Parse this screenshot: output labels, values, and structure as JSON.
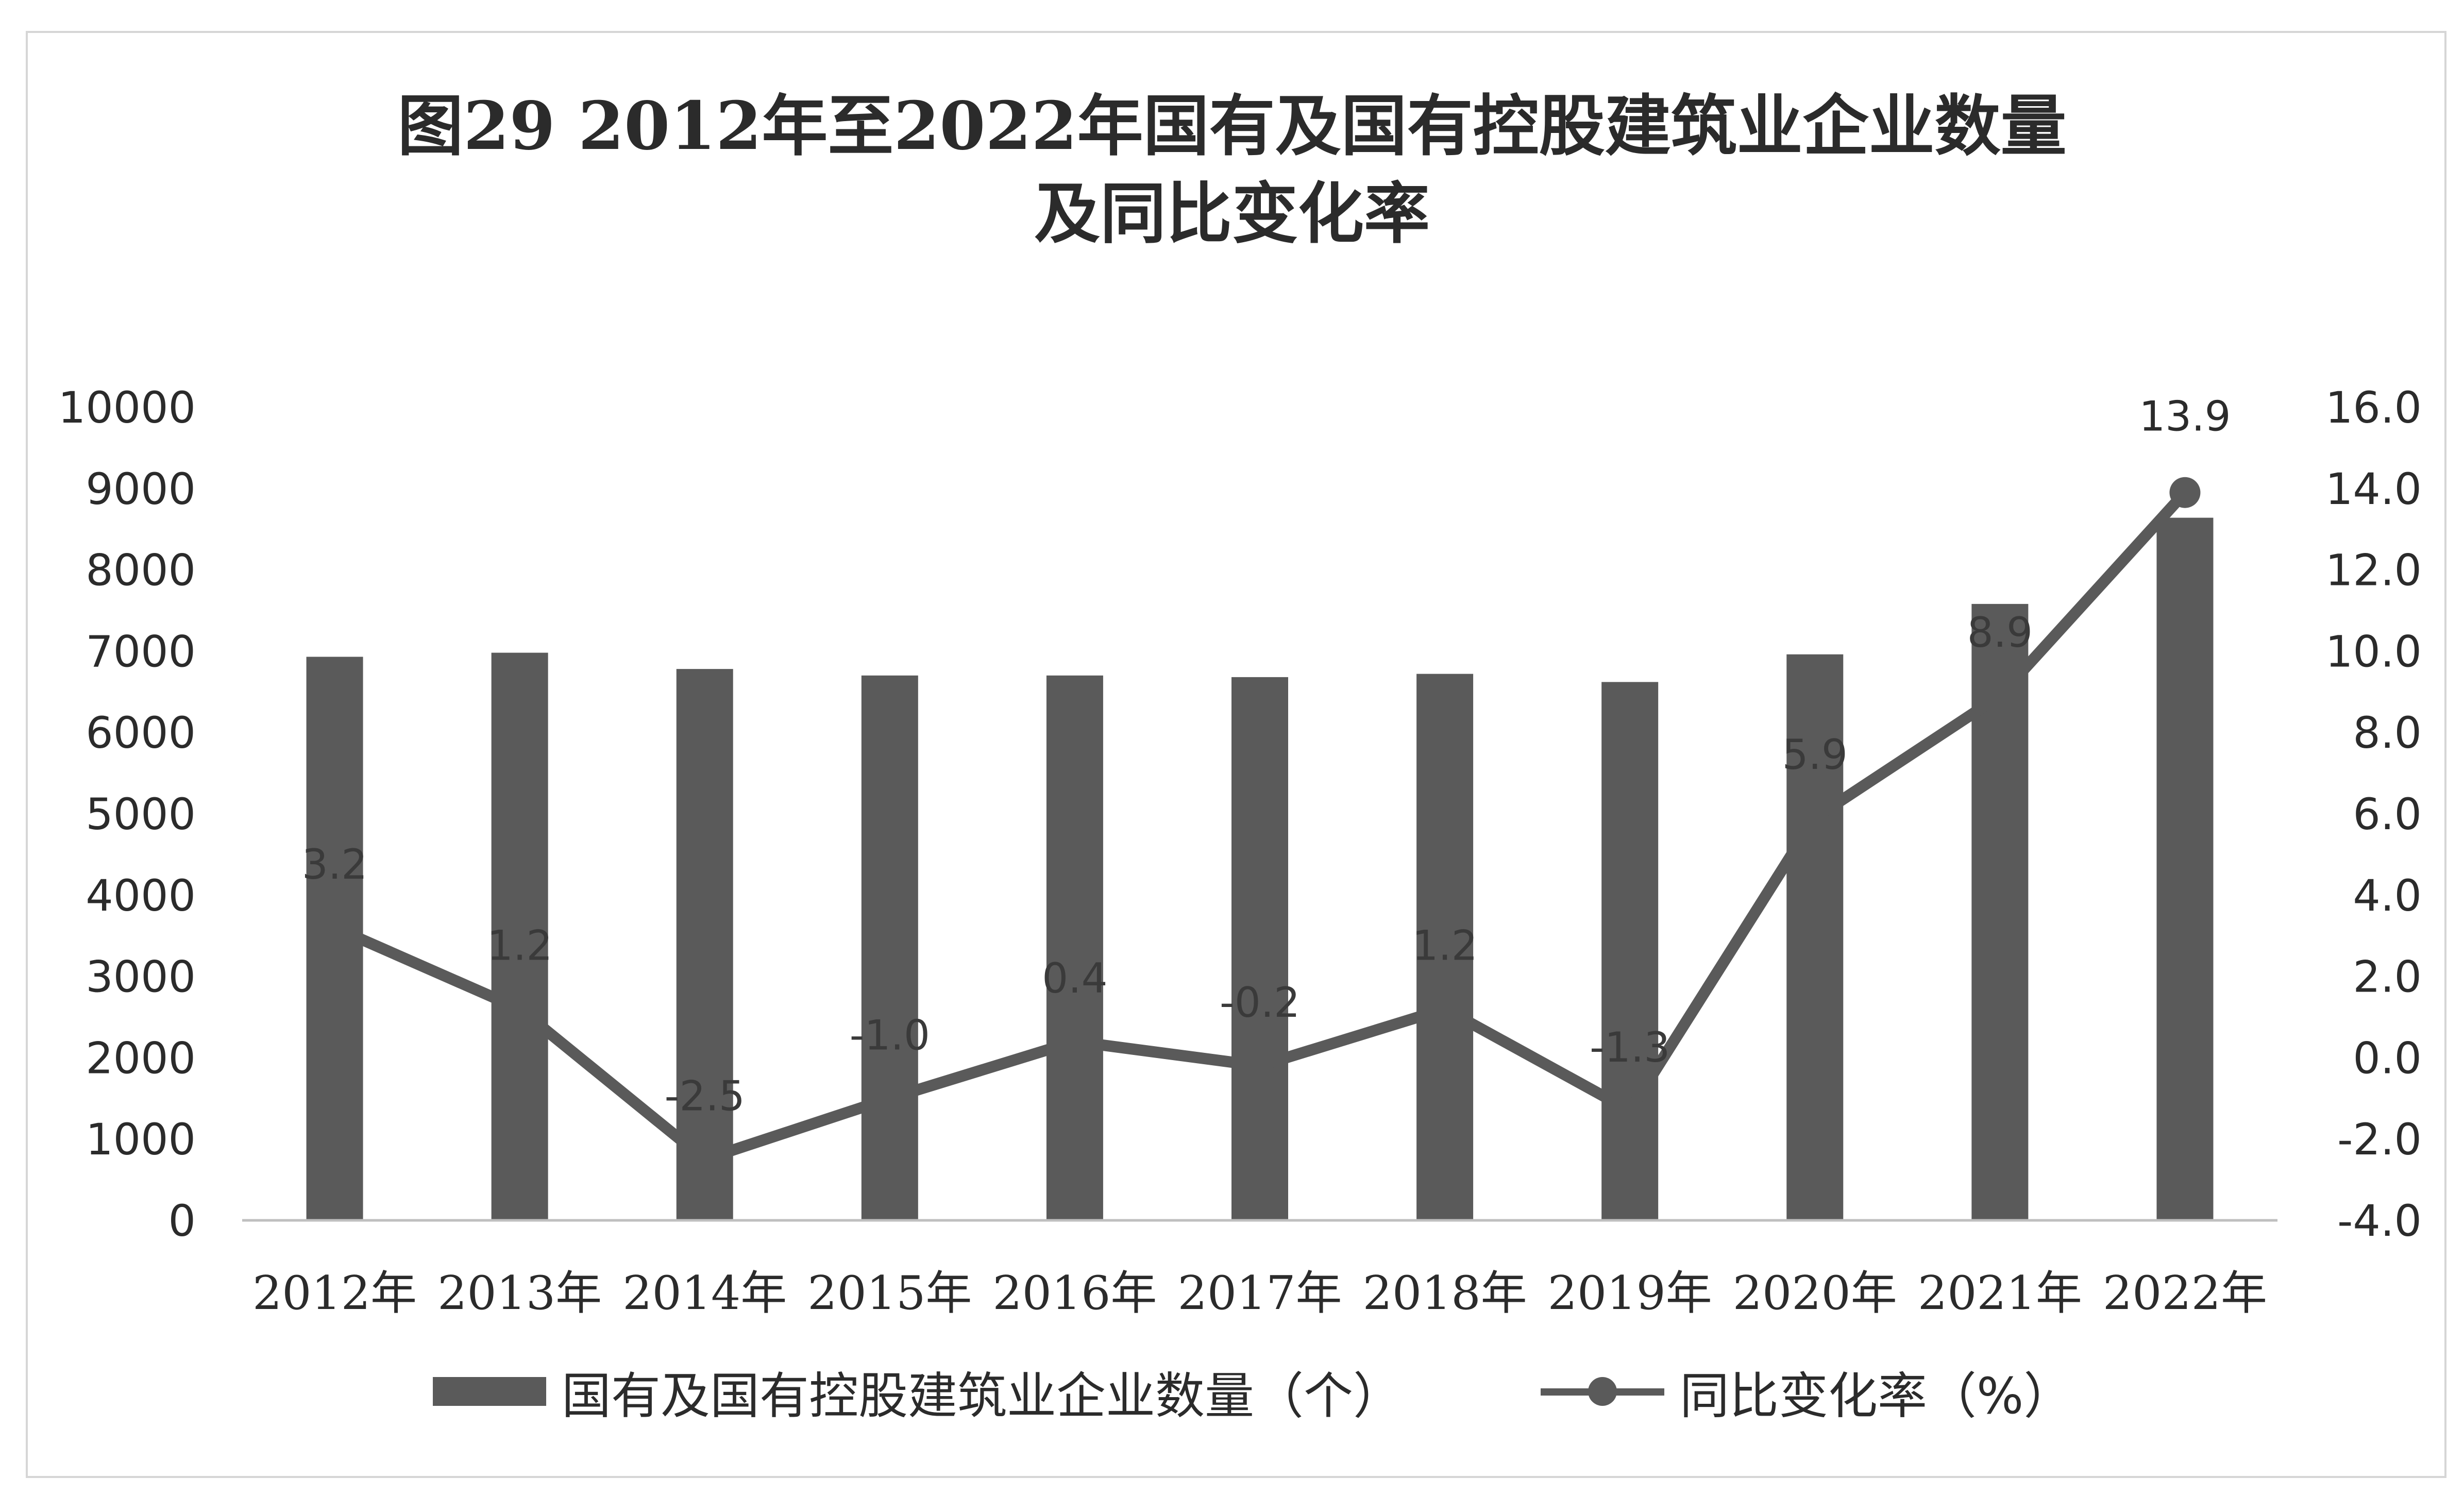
{
  "chart_data": {
    "type": "bar",
    "title_line1": "图29  2012年至2022年国有及国有控股建筑业企业数量",
    "title_line2": "及同比变化率",
    "categories": [
      "2012年",
      "2013年",
      "2014年",
      "2015年",
      "2016年",
      "2017年",
      "2018年",
      "2019年",
      "2020年",
      "2021年",
      "2022年"
    ],
    "series": [
      {
        "name": "国有及国有控股建筑业企业数量（个）",
        "axis": "left",
        "type": "bar",
        "color": "#5a5a5a",
        "values": [
          6930,
          6980,
          6780,
          6700,
          6700,
          6680,
          6720,
          6620,
          6960,
          7580,
          8640
        ]
      },
      {
        "name": "同比变化率（%）",
        "axis": "right",
        "type": "line",
        "color": "#5a5a5a",
        "values": [
          3.2,
          1.2,
          -2.5,
          -1.0,
          0.4,
          -0.2,
          1.2,
          -1.3,
          5.9,
          8.9,
          13.9
        ],
        "labels": [
          "3.2",
          "1.2",
          "-2.5",
          "-1.0",
          "0.4",
          "-0.2",
          "1.2",
          "-1.3",
          "5.9",
          "8.9",
          "13.9"
        ]
      }
    ],
    "y_left": {
      "lim": [
        0,
        10000
      ],
      "ticks": [
        0,
        1000,
        2000,
        3000,
        4000,
        5000,
        6000,
        7000,
        8000,
        9000,
        10000
      ],
      "tick_labels": [
        "0",
        "1000",
        "2000",
        "3000",
        "4000",
        "5000",
        "6000",
        "7000",
        "8000",
        "9000",
        "10000"
      ]
    },
    "y_right": {
      "lim": [
        -4.0,
        16.0
      ],
      "ticks": [
        -4.0,
        -2.0,
        0.0,
        2.0,
        4.0,
        6.0,
        8.0,
        10.0,
        12.0,
        14.0,
        16.0
      ],
      "tick_labels": [
        "-4.0",
        "-2.0",
        "0.0",
        "2.0",
        "4.0",
        "6.0",
        "8.0",
        "10.0",
        "12.0",
        "14.0",
        "16.0"
      ]
    },
    "grid": false,
    "legend_position": "bottom"
  }
}
